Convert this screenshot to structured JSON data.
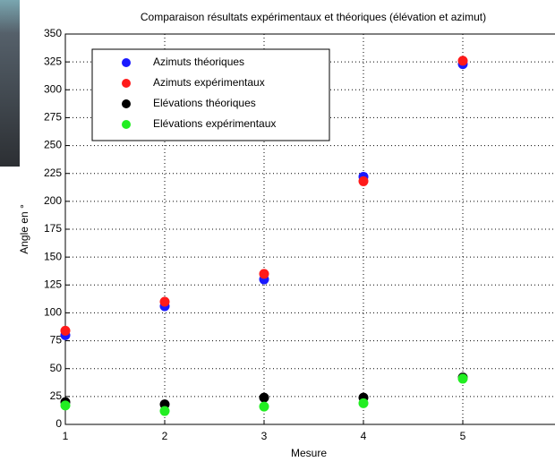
{
  "chart_data": {
    "type": "scatter",
    "title": "Comparaison résultats expérimentaux et théoriques (élévation et azimut)",
    "xlabel": "Mesure",
    "ylabel": "Angle en °",
    "x": [
      1,
      2,
      3,
      4,
      5
    ],
    "series": [
      {
        "name": "Azimuts théoriques",
        "color": "#1a1aff",
        "values": [
          80,
          106,
          130,
          222,
          323
        ]
      },
      {
        "name": "Azimuts expérimentaux",
        "color": "#ff1a1a",
        "values": [
          84,
          110,
          135,
          218,
          326
        ]
      },
      {
        "name": "Elévations théoriques",
        "color": "#000000",
        "values": [
          20,
          18,
          24,
          24,
          42
        ]
      },
      {
        "name": "Elévations expérimentaux",
        "color": "#22ee22",
        "values": [
          17,
          12,
          16,
          19,
          41
        ]
      }
    ],
    "xlim": [
      1,
      6
    ],
    "xticks": [
      1,
      2,
      3,
      4,
      5
    ],
    "ylim": [
      0,
      350
    ],
    "yticks": [
      0,
      25,
      50,
      75,
      100,
      125,
      150,
      175,
      200,
      225,
      250,
      275,
      300,
      325,
      350
    ],
    "grid": true,
    "legend": "upper left"
  }
}
